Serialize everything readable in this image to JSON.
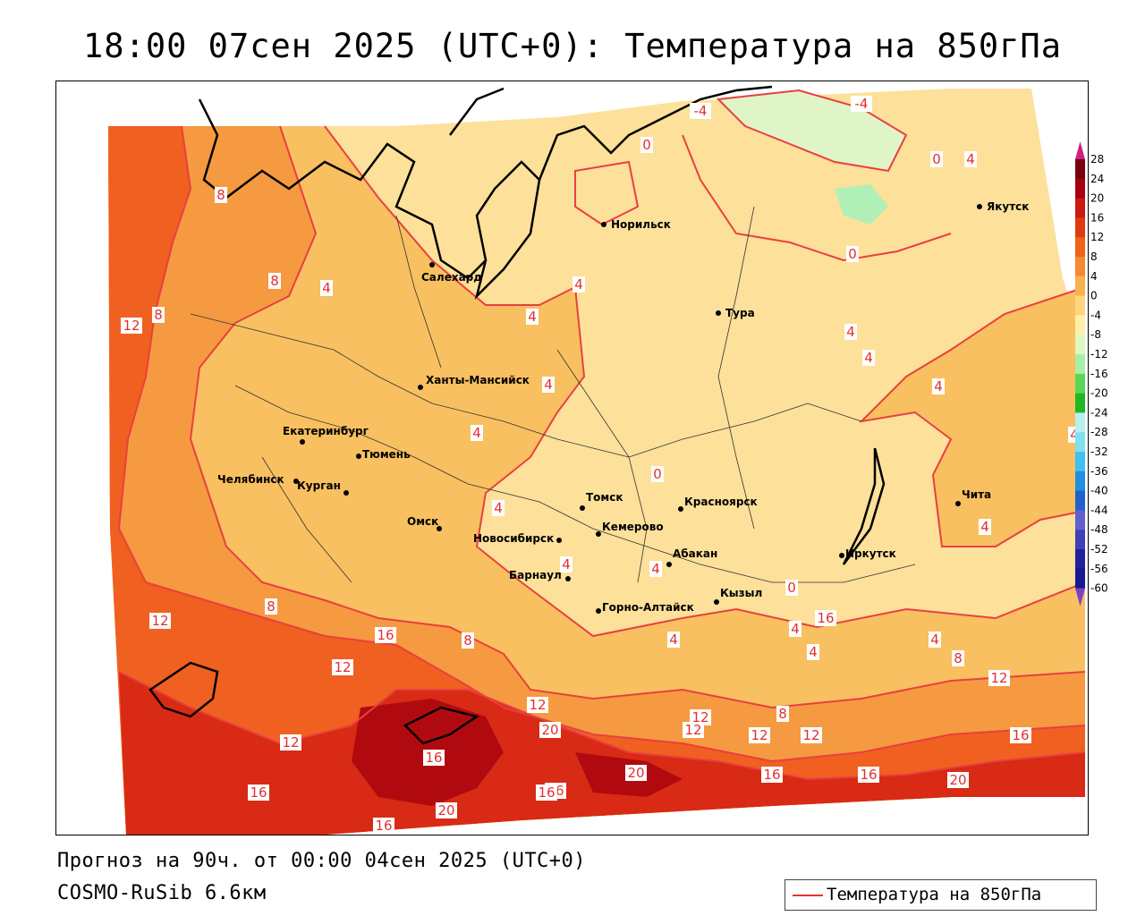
{
  "title": "18:00 07сен 2025 (UTC+0): Температура на 850гПа",
  "footer": {
    "forecast": "Прогноз на 90ч. от 00:00 04сен 2025 (UTC+0)",
    "model": "COSMO-RuSib 6.6км"
  },
  "legend": {
    "label": "Температура на 850гПа",
    "line_color": "#e53030"
  },
  "colorbar": {
    "ticks": [
      "28",
      "24",
      "20",
      "16",
      "12",
      "8",
      "4",
      "0",
      "-4",
      "-8",
      "-12",
      "-16",
      "-20",
      "-24",
      "-28",
      "-32",
      "-36",
      "-40",
      "-44",
      "-48",
      "-52",
      "-56",
      "-60"
    ],
    "colors": [
      "#7a0010",
      "#a80010",
      "#cc1a10",
      "#e03a12",
      "#f0621a",
      "#f58a30",
      "#f8b050",
      "#fcd57e",
      "#fff0a8",
      "#dff7c0",
      "#a8f0a8",
      "#58d858",
      "#20b820",
      "#b8f0f0",
      "#80e0f0",
      "#40c0f0",
      "#2090e0",
      "#2060d0",
      "#6060d0",
      "#4040b8",
      "#2020a0",
      "#181890"
    ],
    "top_arrow_color": "#d02080",
    "bottom_arrow_color": "#8040c0"
  },
  "cities": [
    {
      "name": "Норильск"
    },
    {
      "name": "Якутск"
    },
    {
      "name": "Салехард"
    },
    {
      "name": "Тура"
    },
    {
      "name": "Ханты-Мансийск"
    },
    {
      "name": "Екатеринбург"
    },
    {
      "name": "Тюмень"
    },
    {
      "name": "Челябинск"
    },
    {
      "name": "Курган"
    },
    {
      "name": "Омск"
    },
    {
      "name": "Новосибирск"
    },
    {
      "name": "Томск"
    },
    {
      "name": "Кемерово"
    },
    {
      "name": "Красноярск"
    },
    {
      "name": "Абакан"
    },
    {
      "name": "Барнаул"
    },
    {
      "name": "Горно-Алтайск"
    },
    {
      "name": "Кызыл"
    },
    {
      "name": "Иркутск"
    },
    {
      "name": "Чита"
    }
  ],
  "contour_labels": [
    "-4",
    "-4",
    "0",
    "0",
    "4",
    "0",
    "8",
    "8",
    "4",
    "12",
    "8",
    "4",
    "4",
    "4",
    "4",
    "4",
    "4",
    "4",
    "4",
    "0",
    "0",
    "4",
    "8",
    "12",
    "12",
    "16",
    "8",
    "12",
    "12",
    "16",
    "20",
    "16",
    "16",
    "20",
    "20",
    "16",
    "12",
    "12",
    "12",
    "12",
    "16",
    "16",
    "16",
    "20",
    "8",
    "4",
    "4",
    "4",
    "4",
    "4",
    "8",
    "12",
    "16",
    "4",
    "4",
    "16"
  ],
  "color_regions": {
    "plus_20": "#b00a10",
    "plus_16": "#d82a14",
    "plus_12": "#f06020",
    "plus_8": "#f59a40",
    "plus_4": "#f8c060",
    "zero": "#fde09a",
    "minus_4": "#dff5c8",
    "minus_8": "#b0f0b8",
    "contour_line": "#e84040",
    "coast_line": "#000000",
    "border_line": "#333333"
  }
}
